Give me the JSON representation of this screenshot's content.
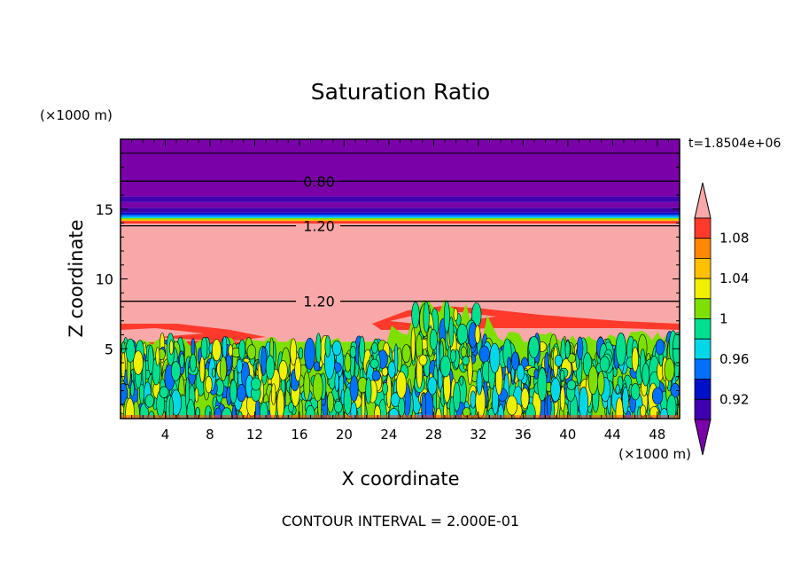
{
  "chart_data": {
    "type": "heatmap",
    "title": "Saturation Ratio",
    "xlabel": "X coordinate",
    "ylabel": "Z coordinate",
    "x_unit": "(×1000 m)",
    "y_unit": "(×1000 m)",
    "time_label": "t=1.8504e+06",
    "footer": "CONTOUR INTERVAL = 2.000E-01",
    "xlim": [
      0,
      50
    ],
    "ylim": [
      0,
      20
    ],
    "x_ticks": [
      4,
      8,
      12,
      16,
      20,
      24,
      28,
      32,
      36,
      40,
      44,
      48
    ],
    "y_ticks": [
      5,
      10,
      15
    ],
    "colorbar": {
      "levels": [
        0.92,
        0.96,
        1,
        1.04,
        1.08
      ],
      "colors": [
        "#7a00a8",
        "#3f00b0",
        "#0010c8",
        "#0070ff",
        "#00d8e8",
        "#00e090",
        "#7ee000",
        "#f0f000",
        "#ffc000",
        "#ff8800",
        "#ff3a2a",
        "#f8a8a8"
      ]
    },
    "layers": [
      {
        "z": [
          15.9,
          20
        ],
        "class": "lt 0.92"
      },
      {
        "z": [
          15.5,
          15.9
        ],
        "class": "0.92-0.96"
      },
      {
        "z": [
          15.1,
          15.5
        ],
        "class": "lt 0.92"
      },
      {
        "z": [
          14.6,
          15.1
        ],
        "class": "0.92-0.96"
      },
      {
        "z": [
          14.2,
          14.6
        ],
        "class": "0.96-1.04"
      },
      {
        "z": [
          13.8,
          14.2
        ],
        "class": "1.04-1.08"
      },
      {
        "z": [
          8.5,
          13.8
        ],
        "class": "gt 1.08"
      },
      {
        "z": [
          5.5,
          8.5
        ],
        "class": "gt 1.08 with 1.04-1.08 patches"
      },
      {
        "z": [
          0,
          5.5
        ],
        "class": "0.96-1.02 cellular"
      }
    ],
    "contour_lines": [
      {
        "label": "0.80",
        "z": 17
      },
      {
        "label": "1.20",
        "z": 13.8
      },
      {
        "label": "1.20",
        "z": 8.4
      }
    ]
  }
}
